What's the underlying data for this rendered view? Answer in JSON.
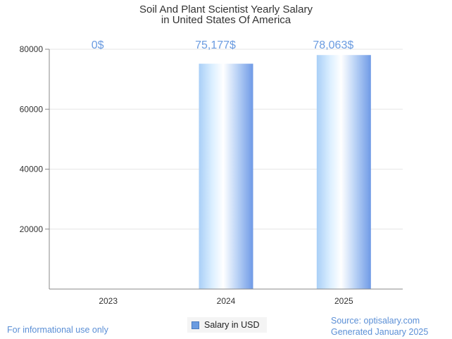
{
  "chart_data": {
    "type": "bar",
    "title": [
      "Soil And Plant Scientist Yearly Salary",
      "in United States Of America"
    ],
    "categories": [
      "2023",
      "2024",
      "2025"
    ],
    "series": [
      {
        "name": "Salary in USD",
        "values": [
          0,
          75177,
          78063
        ],
        "labels": [
          "0$",
          "75,177$",
          "78,063$"
        ]
      }
    ],
    "ylim": [
      0,
      80000
    ],
    "yticks": [
      "20000",
      "40000",
      "60000",
      "80000"
    ],
    "grid": true,
    "legend": "bottom-center",
    "colors": {
      "bar_edge": "#6a9be0",
      "bar_light": "#ffffff",
      "bar_mid": "#cfe6ff",
      "label": "#6a9be0",
      "grid": "#e6e6e6",
      "axis": "#888888"
    }
  },
  "footer": {
    "note": "For informational use only",
    "source": "Source: optisalary.com",
    "generated": "Generated January 2025"
  }
}
